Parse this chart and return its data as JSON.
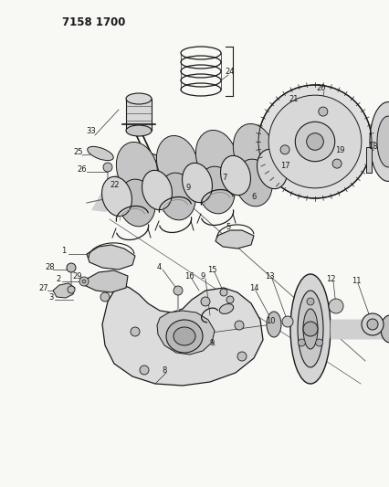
{
  "title": "7158 1700",
  "bg_color": "#f5f5f0",
  "line_color": "#1a1a1a",
  "figsize": [
    4.27,
    5.33
  ],
  "dpi": 100,
  "label_fontsize": 6.0,
  "title_fontsize": 8.5
}
